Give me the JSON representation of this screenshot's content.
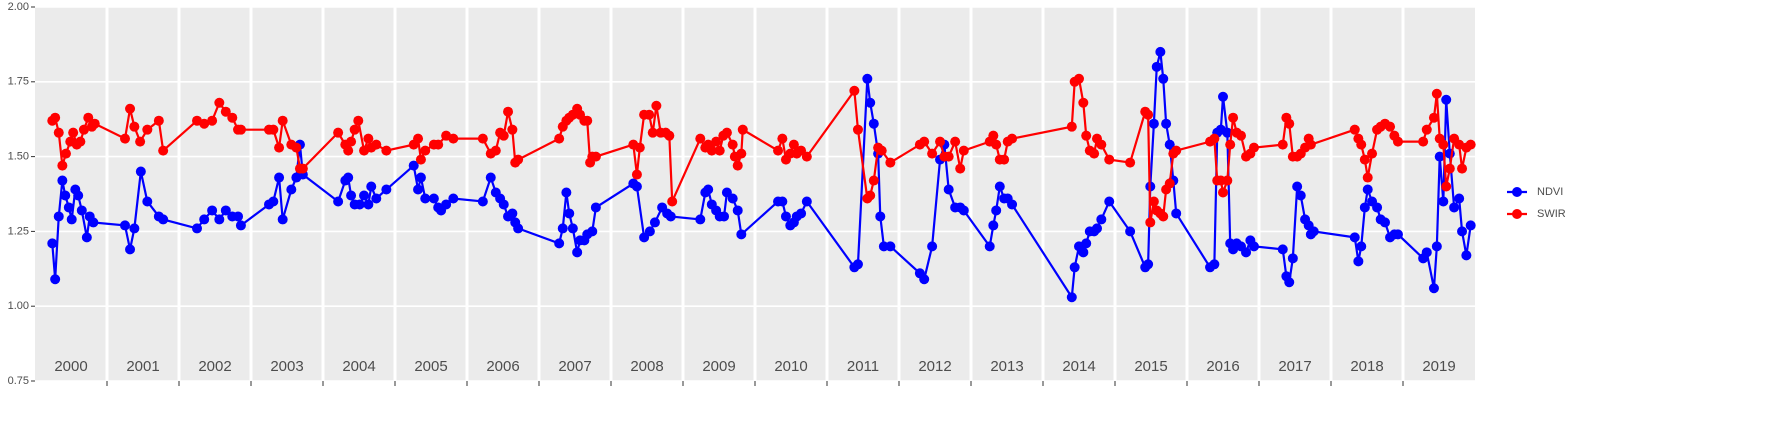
{
  "chart_data": {
    "type": "line",
    "xlim": [
      2000,
      2020
    ],
    "ylim": [
      0.75,
      2.0
    ],
    "xticks": [
      {
        "value": 2000.5,
        "label": "2000"
      },
      {
        "value": 2001.5,
        "label": "2001"
      },
      {
        "value": 2002.5,
        "label": "2002"
      },
      {
        "value": 2003.5,
        "label": "2003"
      },
      {
        "value": 2004.5,
        "label": "2004"
      },
      {
        "value": 2005.5,
        "label": "2005"
      },
      {
        "value": 2006.5,
        "label": "2006"
      },
      {
        "value": 2007.5,
        "label": "2007"
      },
      {
        "value": 2008.5,
        "label": "2008"
      },
      {
        "value": 2009.5,
        "label": "2009"
      },
      {
        "value": 2010.5,
        "label": "2010"
      },
      {
        "value": 2011.5,
        "label": "2011"
      },
      {
        "value": 2012.5,
        "label": "2012"
      },
      {
        "value": 2013.5,
        "label": "2013"
      },
      {
        "value": 2014.5,
        "label": "2014"
      },
      {
        "value": 2015.5,
        "label": "2015"
      },
      {
        "value": 2016.5,
        "label": "2016"
      },
      {
        "value": 2017.5,
        "label": "2017"
      },
      {
        "value": 2018.5,
        "label": "2018"
      },
      {
        "value": 2019.5,
        "label": "2019"
      }
    ],
    "xgrid": [
      2001,
      2002,
      2003,
      2004,
      2005,
      2006,
      2007,
      2008,
      2009,
      2010,
      2011,
      2012,
      2013,
      2014,
      2015,
      2016,
      2017,
      2018,
      2019
    ],
    "yticks": [
      {
        "value": 0.75,
        "label": "0.75"
      },
      {
        "value": 1.0,
        "label": "1.00"
      },
      1.25,
      {
        "value": 1.5,
        "label": "1.50"
      },
      1.75,
      {
        "value": 2.0,
        "label": "2.00"
      }
    ],
    "grid": true,
    "legend": "right",
    "series": [
      {
        "name": "NDVI",
        "color": "#0000ff",
        "x": [
          2000.24,
          2000.28,
          2000.33,
          2000.38,
          2000.42,
          2000.47,
          2000.51,
          2000.56,
          2000.6,
          2000.65,
          2000.72,
          2000.76,
          2000.81,
          2001.25,
          2001.32,
          2001.38,
          2001.47,
          2001.56,
          2001.72,
          2001.78,
          2002.25,
          2002.35,
          2002.46,
          2002.56,
          2002.65,
          2002.74,
          2002.82,
          2002.86,
          2003.25,
          2003.31,
          2003.39,
          2003.44,
          2003.56,
          2003.63,
          2003.68,
          2003.72,
          2004.21,
          2004.31,
          2004.35,
          2004.39,
          2004.44,
          2004.51,
          2004.57,
          2004.63,
          2004.67,
          2004.74,
          2004.88,
          2005.26,
          2005.32,
          2005.36,
          2005.42,
          2005.54,
          2005.6,
          2005.64,
          2005.71,
          2005.81,
          2006.22,
          2006.33,
          2006.4,
          2006.46,
          2006.51,
          2006.57,
          2006.63,
          2006.67,
          2006.71,
          2007.28,
          2007.33,
          2007.38,
          2007.42,
          2007.47,
          2007.53,
          2007.57,
          2007.63,
          2007.67,
          2007.74,
          2007.79,
          2008.31,
          2008.36,
          2008.46,
          2008.54,
          2008.61,
          2008.71,
          2008.78,
          2008.83,
          2009.24,
          2009.31,
          2009.35,
          2009.4,
          2009.46,
          2009.51,
          2009.57,
          2009.61,
          2009.69,
          2009.76,
          2009.81,
          2010.32,
          2010.38,
          2010.43,
          2010.49,
          2010.54,
          2010.58,
          2010.64,
          2010.72,
          2011.38,
          2011.43,
          2011.56,
          2011.6,
          2011.65,
          2011.71,
          2011.74,
          2011.79,
          2011.88,
          2012.29,
          2012.35,
          2012.46,
          2012.57,
          2012.63,
          2012.69,
          2012.78,
          2012.85,
          2012.9,
          2013.26,
          2013.31,
          2013.35,
          2013.4,
          2013.46,
          2013.51,
          2013.57,
          2014.4,
          2014.44,
          2014.5,
          2014.56,
          2014.6,
          2014.65,
          2014.71,
          2014.75,
          2014.81,
          2014.92,
          2015.21,
          2015.42,
          2015.46,
          2015.49,
          2015.54,
          2015.58,
          2015.63,
          2015.67,
          2015.71,
          2015.76,
          2015.81,
          2015.85,
          2016.32,
          2016.38,
          2016.42,
          2016.47,
          2016.5,
          2016.56,
          2016.6,
          2016.64,
          2016.69,
          2016.75,
          2016.82,
          2016.88,
          2016.93,
          2017.33,
          2017.38,
          2017.42,
          2017.47,
          2017.53,
          2017.58,
          2017.64,
          2017.69,
          2017.72,
          2017.76,
          2018.33,
          2018.38,
          2018.42,
          2018.47,
          2018.51,
          2018.57,
          2018.64,
          2018.69,
          2018.75,
          2018.82,
          2018.88,
          2018.93,
          2019.28,
          2019.33,
          2019.43,
          2019.47,
          2019.51,
          2019.56,
          2019.6,
          2019.65,
          2019.71,
          2019.78,
          2019.82,
          2019.88,
          2019.94
        ],
        "values": [
          1.21,
          1.09,
          1.3,
          1.42,
          1.37,
          1.33,
          1.29,
          1.39,
          1.37,
          1.32,
          1.23,
          1.3,
          1.28,
          1.27,
          1.19,
          1.26,
          1.45,
          1.35,
          1.3,
          1.29,
          1.26,
          1.29,
          1.32,
          1.29,
          1.32,
          1.3,
          1.3,
          1.27,
          1.34,
          1.35,
          1.43,
          1.29,
          1.39,
          1.43,
          1.54,
          1.44,
          1.35,
          1.42,
          1.43,
          1.37,
          1.34,
          1.34,
          1.37,
          1.34,
          1.4,
          1.36,
          1.39,
          1.47,
          1.39,
          1.43,
          1.36,
          1.36,
          1.33,
          1.32,
          1.34,
          1.36,
          1.35,
          1.43,
          1.38,
          1.36,
          1.34,
          1.3,
          1.31,
          1.28,
          1.26,
          1.21,
          1.26,
          1.38,
          1.31,
          1.26,
          1.18,
          1.22,
          1.22,
          1.24,
          1.25,
          1.33,
          1.41,
          1.4,
          1.23,
          1.25,
          1.28,
          1.33,
          1.31,
          1.3,
          1.29,
          1.38,
          1.39,
          1.34,
          1.32,
          1.3,
          1.3,
          1.38,
          1.36,
          1.32,
          1.24,
          1.35,
          1.35,
          1.3,
          1.27,
          1.28,
          1.3,
          1.31,
          1.35,
          1.13,
          1.14,
          1.76,
          1.68,
          1.61,
          1.51,
          1.3,
          1.2,
          1.2,
          1.11,
          1.09,
          1.2,
          1.49,
          1.54,
          1.39,
          1.33,
          1.33,
          1.32,
          1.2,
          1.27,
          1.32,
          1.4,
          1.36,
          1.36,
          1.34,
          1.03,
          1.13,
          1.2,
          1.18,
          1.21,
          1.25,
          1.25,
          1.26,
          1.29,
          1.35,
          1.25,
          1.13,
          1.14,
          1.4,
          1.61,
          1.8,
          1.85,
          1.76,
          1.61,
          1.54,
          1.42,
          1.31,
          1.13,
          1.14,
          1.58,
          1.59,
          1.7,
          1.58,
          1.21,
          1.19,
          1.21,
          1.2,
          1.18,
          1.22,
          1.2,
          1.19,
          1.1,
          1.08,
          1.16,
          1.4,
          1.37,
          1.29,
          1.27,
          1.24,
          1.25,
          1.23,
          1.15,
          1.2,
          1.33,
          1.39,
          1.35,
          1.33,
          1.29,
          1.28,
          1.23,
          1.24,
          1.24,
          1.16,
          1.18,
          1.06,
          1.2,
          1.5,
          1.35,
          1.69,
          1.51,
          1.33,
          1.36,
          1.25,
          1.17,
          1.27
        ]
      },
      {
        "name": "SWIR",
        "color": "#ff0000",
        "x": [
          2000.24,
          2000.28,
          2000.33,
          2000.38,
          2000.43,
          2000.49,
          2000.53,
          2000.58,
          2000.63,
          2000.68,
          2000.74,
          2000.79,
          2000.83,
          2001.25,
          2001.32,
          2001.38,
          2001.46,
          2001.56,
          2001.72,
          2001.78,
          2002.25,
          2002.35,
          2002.46,
          2002.56,
          2002.65,
          2002.74,
          2002.82,
          2002.86,
          2003.25,
          2003.31,
          2003.39,
          2003.44,
          2003.56,
          2003.63,
          2003.68,
          2003.72,
          2004.21,
          2004.31,
          2004.35,
          2004.39,
          2004.44,
          2004.49,
          2004.57,
          2004.63,
          2004.67,
          2004.74,
          2004.88,
          2005.26,
          2005.32,
          2005.36,
          2005.42,
          2005.54,
          2005.6,
          2005.71,
          2005.81,
          2006.22,
          2006.33,
          2006.4,
          2006.46,
          2006.51,
          2006.57,
          2006.63,
          2006.67,
          2006.71,
          2007.28,
          2007.33,
          2007.38,
          2007.42,
          2007.47,
          2007.53,
          2007.57,
          2007.63,
          2007.67,
          2007.71,
          2007.74,
          2007.79,
          2008.31,
          2008.36,
          2008.4,
          2008.46,
          2008.53,
          2008.58,
          2008.63,
          2008.69,
          2008.76,
          2008.81,
          2008.85,
          2009.24,
          2009.31,
          2009.35,
          2009.4,
          2009.46,
          2009.51,
          2009.56,
          2009.61,
          2009.69,
          2009.72,
          2009.76,
          2009.81,
          2009.83,
          2010.32,
          2010.38,
          2010.43,
          2010.49,
          2010.54,
          2010.58,
          2010.64,
          2010.72,
          2011.38,
          2011.43,
          2011.56,
          2011.6,
          2011.65,
          2011.71,
          2011.76,
          2011.88,
          2012.29,
          2012.35,
          2012.46,
          2012.57,
          2012.63,
          2012.69,
          2012.78,
          2012.85,
          2012.9,
          2013.26,
          2013.31,
          2013.35,
          2013.4,
          2013.46,
          2013.51,
          2013.57,
          2014.4,
          2014.44,
          2014.5,
          2014.56,
          2014.6,
          2014.65,
          2014.71,
          2014.75,
          2014.81,
          2014.92,
          2015.21,
          2015.42,
          2015.46,
          2015.49,
          2015.54,
          2015.58,
          2015.63,
          2015.67,
          2015.71,
          2015.76,
          2015.81,
          2015.85,
          2016.32,
          2016.38,
          2016.42,
          2016.47,
          2016.5,
          2016.56,
          2016.6,
          2016.64,
          2016.69,
          2016.75,
          2016.82,
          2016.88,
          2016.93,
          2017.33,
          2017.38,
          2017.42,
          2017.47,
          2017.53,
          2017.58,
          2017.64,
          2017.69,
          2017.72,
          2018.33,
          2018.38,
          2018.42,
          2018.47,
          2018.51,
          2018.57,
          2018.64,
          2018.69,
          2018.75,
          2018.82,
          2018.88,
          2018.93,
          2019.28,
          2019.33,
          2019.43,
          2019.47,
          2019.51,
          2019.56,
          2019.6,
          2019.65,
          2019.71,
          2019.78,
          2019.82,
          2019.88,
          2019.94
        ],
        "values": [
          1.62,
          1.63,
          1.58,
          1.47,
          1.51,
          1.55,
          1.58,
          1.54,
          1.55,
          1.59,
          1.63,
          1.6,
          1.61,
          1.56,
          1.66,
          1.6,
          1.55,
          1.59,
          1.62,
          1.52,
          1.62,
          1.61,
          1.62,
          1.68,
          1.65,
          1.63,
          1.59,
          1.59,
          1.59,
          1.59,
          1.53,
          1.62,
          1.54,
          1.53,
          1.46,
          1.46,
          1.58,
          1.54,
          1.52,
          1.55,
          1.59,
          1.62,
          1.52,
          1.56,
          1.53,
          1.54,
          1.52,
          1.54,
          1.56,
          1.49,
          1.52,
          1.54,
          1.54,
          1.57,
          1.56,
          1.56,
          1.51,
          1.52,
          1.58,
          1.57,
          1.65,
          1.59,
          1.48,
          1.49,
          1.56,
          1.6,
          1.62,
          1.63,
          1.64,
          1.66,
          1.64,
          1.62,
          1.62,
          1.48,
          1.5,
          1.5,
          1.54,
          1.44,
          1.53,
          1.64,
          1.64,
          1.58,
          1.67,
          1.58,
          1.58,
          1.57,
          1.35,
          1.56,
          1.53,
          1.54,
          1.52,
          1.55,
          1.52,
          1.57,
          1.58,
          1.54,
          1.5,
          1.47,
          1.51,
          1.59,
          1.52,
          1.56,
          1.49,
          1.51,
          1.54,
          1.51,
          1.52,
          1.5,
          1.72,
          1.59,
          1.36,
          1.37,
          1.42,
          1.53,
          1.52,
          1.48,
          1.54,
          1.55,
          1.51,
          1.55,
          1.5,
          1.5,
          1.55,
          1.46,
          1.52,
          1.55,
          1.57,
          1.54,
          1.49,
          1.49,
          1.55,
          1.56,
          1.6,
          1.75,
          1.76,
          1.68,
          1.57,
          1.52,
          1.51,
          1.56,
          1.54,
          1.49,
          1.48,
          1.65,
          1.64,
          1.28,
          1.35,
          1.32,
          1.31,
          1.3,
          1.39,
          1.41,
          1.51,
          1.52,
          1.55,
          1.56,
          1.42,
          1.42,
          1.38,
          1.42,
          1.54,
          1.63,
          1.58,
          1.57,
          1.5,
          1.51,
          1.53,
          1.54,
          1.63,
          1.61,
          1.5,
          1.5,
          1.51,
          1.53,
          1.56,
          1.54,
          1.59,
          1.56,
          1.54,
          1.49,
          1.43,
          1.51,
          1.59,
          1.6,
          1.61,
          1.6,
          1.57,
          1.55,
          1.55,
          1.59,
          1.63,
          1.71,
          1.56,
          1.54,
          1.4,
          1.46,
          1.56,
          1.54,
          1.46,
          1.53,
          1.54
        ]
      }
    ]
  }
}
